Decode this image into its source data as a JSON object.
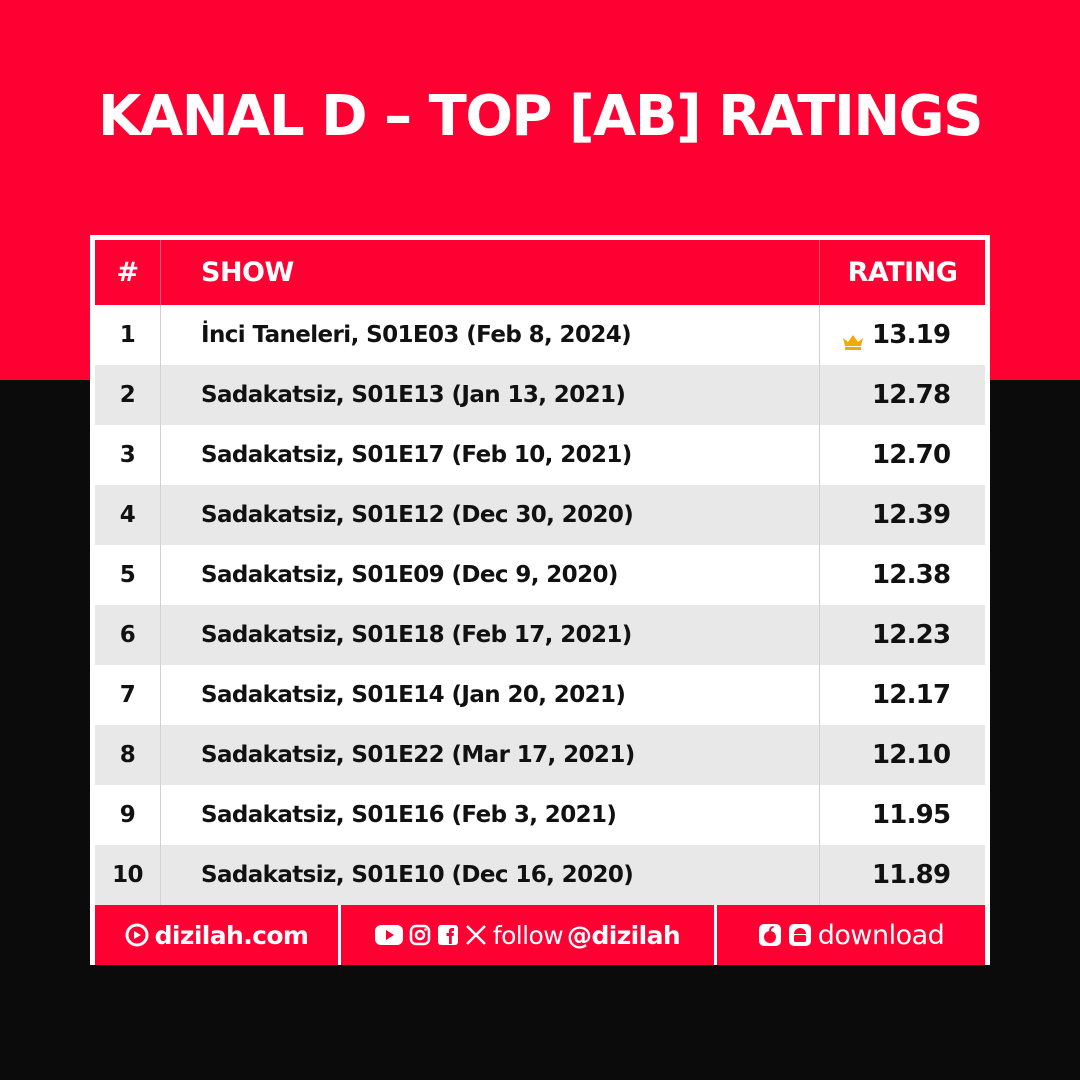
{
  "header": {
    "title": "KANAL D – TOP [AB] RATINGS"
  },
  "table": {
    "columns": [
      "#",
      "SHOW",
      "RATING"
    ],
    "rows": [
      {
        "rank": "1",
        "show": "İnci Taneleri, S01E03 (Feb 8, 2024)",
        "rating": "13.19",
        "top": true
      },
      {
        "rank": "2",
        "show": "Sadakatsiz, S01E13 (Jan 13, 2021)",
        "rating": "12.78"
      },
      {
        "rank": "3",
        "show": "Sadakatsiz, S01E17 (Feb 10, 2021)",
        "rating": "12.70"
      },
      {
        "rank": "4",
        "show": "Sadakatsiz, S01E12 (Dec 30, 2020)",
        "rating": "12.39"
      },
      {
        "rank": "5",
        "show": "Sadakatsiz, S01E09 (Dec 9, 2020)",
        "rating": "12.38"
      },
      {
        "rank": "6",
        "show": "Sadakatsiz, S01E18 (Feb 17, 2021)",
        "rating": "12.23"
      },
      {
        "rank": "7",
        "show": "Sadakatsiz, S01E14 (Jan 20, 2021)",
        "rating": "12.17"
      },
      {
        "rank": "8",
        "show": "Sadakatsiz, S01E22 (Mar 17, 2021)",
        "rating": "12.10"
      },
      {
        "rank": "9",
        "show": "Sadakatsiz, S01E16 (Feb 3, 2021)",
        "rating": "11.95"
      },
      {
        "rank": "10",
        "show": "Sadakatsiz, S01E10 (Dec 16, 2020)",
        "rating": "11.89"
      }
    ]
  },
  "footer": {
    "site": "dizilah.com",
    "follow_label": "follow",
    "handle": "@dizilah",
    "download_label": "download",
    "icons": [
      "dizilah-logo-icon",
      "youtube-icon",
      "instagram-icon",
      "facebook-icon",
      "x-icon",
      "apple-icon",
      "android-icon"
    ]
  },
  "colors": {
    "brand_red": "#ff0033",
    "dark": "#0b0b0b",
    "row_alt": "#e8e8e8",
    "crown": "#f5a800"
  }
}
